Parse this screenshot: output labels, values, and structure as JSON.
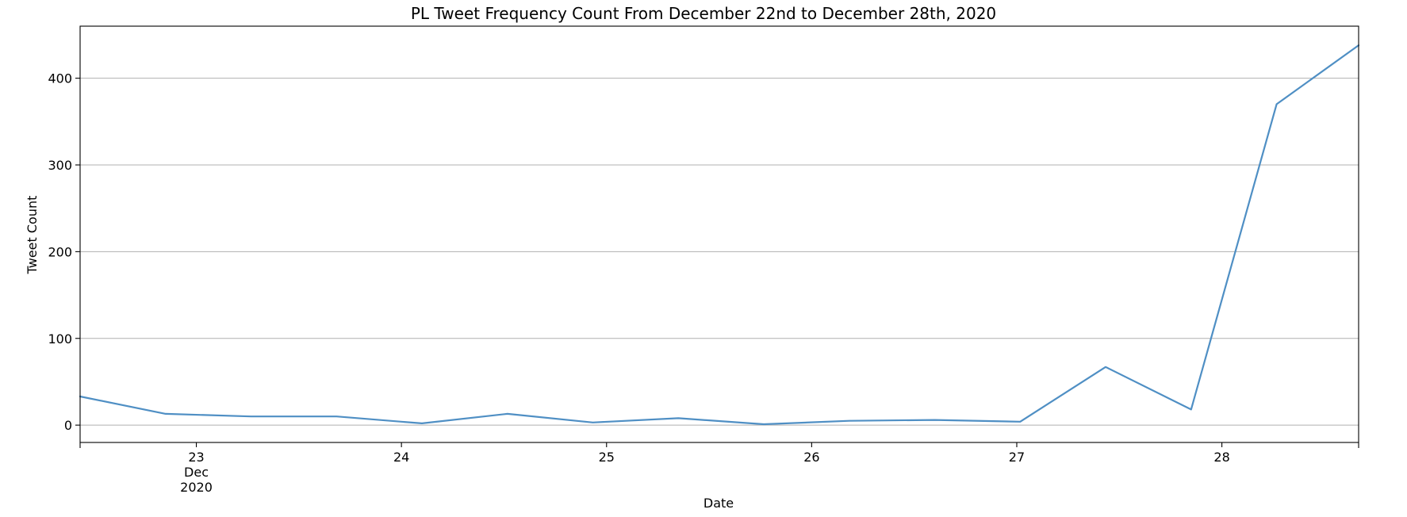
{
  "chart_data": {
    "type": "line",
    "title": "PL Tweet Frequency Count From December 22nd to December 28th, 2020",
    "xlabel": "Date",
    "ylabel": "Tweet Count",
    "x_axis": {
      "type": "date",
      "range": [
        "2020-12-22 10:24",
        "2020-12-28 16:00"
      ],
      "ticks": [
        {
          "date": "2020-12-23",
          "label": "23",
          "sublabel": "Dec",
          "year_label": "2020"
        },
        {
          "date": "2020-12-24",
          "label": "24"
        },
        {
          "date": "2020-12-25",
          "label": "25"
        },
        {
          "date": "2020-12-26",
          "label": "26"
        },
        {
          "date": "2020-12-27",
          "label": "27"
        },
        {
          "date": "2020-12-28",
          "label": "28"
        }
      ]
    },
    "y_axis": {
      "ylim": [
        -20,
        460
      ],
      "ticks": [
        0,
        100,
        200,
        300,
        400
      ],
      "grid": true
    },
    "series": [
      {
        "color": "#4f8fc4",
        "points": [
          {
            "x": "2020-12-22 10:24",
            "y": 33
          },
          {
            "x": "2020-12-22 20:24",
            "y": 13
          },
          {
            "x": "2020-12-23 06:24",
            "y": 10
          },
          {
            "x": "2020-12-23 16:24",
            "y": 10
          },
          {
            "x": "2020-12-24 02:24",
            "y": 2
          },
          {
            "x": "2020-12-24 12:24",
            "y": 13
          },
          {
            "x": "2020-12-24 22:24",
            "y": 3
          },
          {
            "x": "2020-12-25 08:24",
            "y": 8
          },
          {
            "x": "2020-12-25 18:24",
            "y": 1
          },
          {
            "x": "2020-12-26 04:24",
            "y": 5
          },
          {
            "x": "2020-12-26 14:24",
            "y": 6
          },
          {
            "x": "2020-12-27 00:24",
            "y": 4
          },
          {
            "x": "2020-12-27 10:24",
            "y": 67
          },
          {
            "x": "2020-12-27 20:24",
            "y": 18
          },
          {
            "x": "2020-12-28 06:24",
            "y": 370
          },
          {
            "x": "2020-12-28 16:00",
            "y": 438
          }
        ]
      }
    ]
  }
}
